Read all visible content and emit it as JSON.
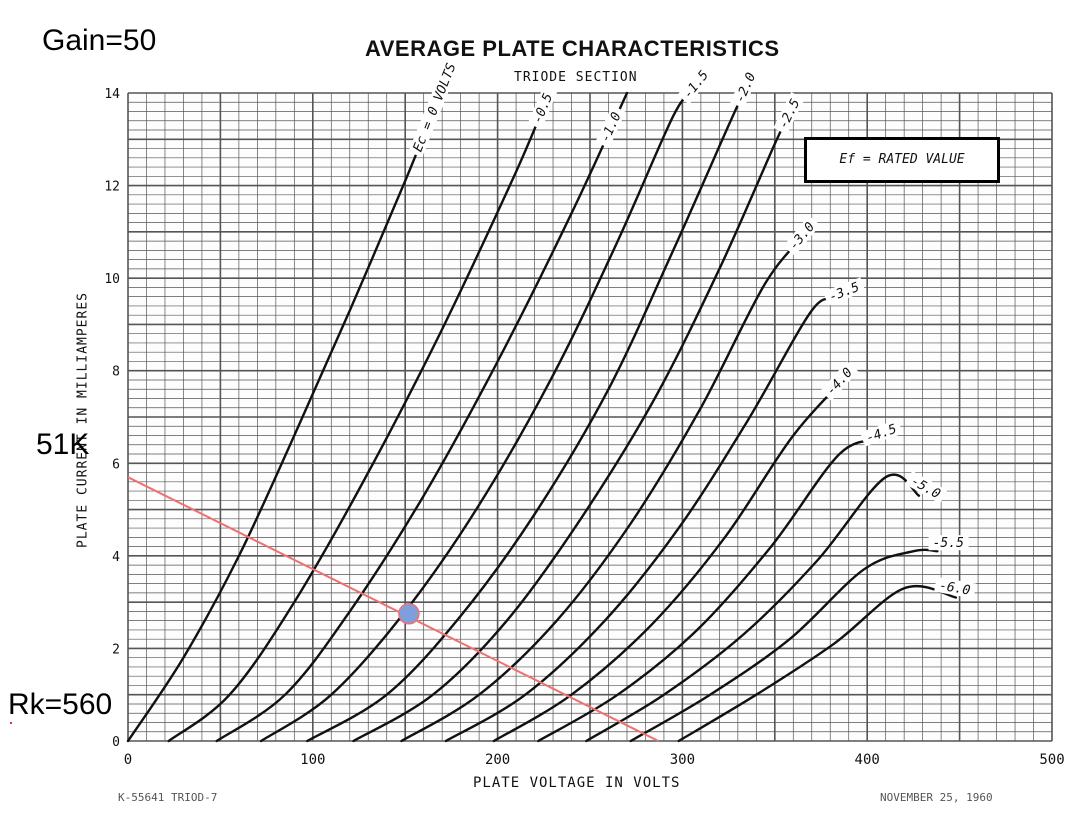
{
  "annotations": {
    "gain": "Gain=50",
    "load_resistor": "51K",
    "cathode_resistor": "Rk=560"
  },
  "chart_data": {
    "type": "line",
    "title": "AVERAGE PLATE CHARACTERISTICS",
    "subtitle": "TRIODE SECTION",
    "xlabel": "PLATE VOLTAGE IN VOLTS",
    "ylabel": "PLATE CURRENT IN MILLIAMPERES",
    "xlim": [
      0,
      500
    ],
    "ylim": [
      0,
      14
    ],
    "x_ticks": [
      "0",
      "100",
      "200",
      "300",
      "400",
      "500"
    ],
    "y_ticks": [
      "0",
      "2",
      "4",
      "6",
      "8",
      "10",
      "12",
      "14"
    ],
    "grid": true,
    "legend_box": "Ef = RATED VALUE",
    "series": [
      {
        "name": "Ec = 0 VOLTS",
        "label": "Ec = 0 VOLTS",
        "points": [
          [
            0,
            0
          ],
          [
            30,
            1.8
          ],
          [
            60,
            4.0
          ],
          [
            90,
            6.6
          ],
          [
            120,
            9.3
          ],
          [
            150,
            12.1
          ],
          [
            165,
            13.6
          ]
        ]
      },
      {
        "name": "-0.5",
        "label": "-0.5",
        "points": [
          [
            22,
            0
          ],
          [
            55,
            1.0
          ],
          [
            90,
            3.0
          ],
          [
            130,
            5.8
          ],
          [
            170,
            8.9
          ],
          [
            210,
            12.3
          ],
          [
            228,
            14.0
          ]
        ]
      },
      {
        "name": "-1.0",
        "label": "-1.0",
        "points": [
          [
            48,
            0
          ],
          [
            85,
            1.0
          ],
          [
            120,
            2.8
          ],
          [
            160,
            5.3
          ],
          [
            200,
            8.2
          ],
          [
            240,
            11.4
          ],
          [
            270,
            14.0
          ]
        ]
      },
      {
        "name": "-1.5",
        "label": "-1.5",
        "points": [
          [
            72,
            0
          ],
          [
            110,
            1.0
          ],
          [
            150,
            2.8
          ],
          [
            190,
            5.1
          ],
          [
            230,
            7.9
          ],
          [
            265,
            10.8
          ],
          [
            295,
            13.5
          ],
          [
            305,
            14.0
          ]
        ]
      },
      {
        "name": "-2.0",
        "label": "-2.0",
        "points": [
          [
            97,
            0
          ],
          [
            140,
            1.0
          ],
          [
            180,
            2.7
          ],
          [
            220,
            4.9
          ],
          [
            260,
            7.6
          ],
          [
            295,
            10.6
          ],
          [
            325,
            13.3
          ],
          [
            333,
            14.0
          ]
        ]
      },
      {
        "name": "-2.5",
        "label": "-2.5",
        "points": [
          [
            122,
            0
          ],
          [
            165,
            1.0
          ],
          [
            205,
            2.6
          ],
          [
            245,
            4.8
          ],
          [
            285,
            7.4
          ],
          [
            320,
            10.2
          ],
          [
            350,
            12.9
          ],
          [
            355,
            13.3
          ]
        ]
      },
      {
        "name": "-3.0",
        "label": "-3.0",
        "points": [
          [
            148,
            0
          ],
          [
            190,
            1.0
          ],
          [
            232,
            2.6
          ],
          [
            272,
            4.7
          ],
          [
            310,
            7.2
          ],
          [
            345,
            9.9
          ],
          [
            368,
            11.0
          ]
        ]
      },
      {
        "name": "-3.5",
        "label": "-3.5",
        "points": [
          [
            172,
            0
          ],
          [
            215,
            1.0
          ],
          [
            258,
            2.6
          ],
          [
            298,
            4.6
          ],
          [
            335,
            6.9
          ],
          [
            370,
            9.3
          ],
          [
            383,
            9.5
          ]
        ]
      },
      {
        "name": "-4.0",
        "label": "-4.0",
        "points": [
          [
            198,
            0
          ],
          [
            240,
            1.0
          ],
          [
            283,
            2.5
          ],
          [
            323,
            4.4
          ],
          [
            360,
            6.6
          ],
          [
            392,
            8.0
          ]
        ]
      },
      {
        "name": "-4.5",
        "label": "-4.5",
        "points": [
          [
            222,
            0
          ],
          [
            265,
            1.0
          ],
          [
            308,
            2.4
          ],
          [
            348,
            4.2
          ],
          [
            385,
            6.2
          ],
          [
            407,
            6.5
          ]
        ]
      },
      {
        "name": "-5.0",
        "label": "-5.0",
        "points": [
          [
            248,
            0
          ],
          [
            290,
            1.0
          ],
          [
            333,
            2.3
          ],
          [
            373,
            3.9
          ],
          [
            410,
            5.7
          ],
          [
            428,
            5.3
          ]
        ]
      },
      {
        "name": "-5.5",
        "label": "-5.5",
        "points": [
          [
            272,
            0
          ],
          [
            315,
            1.0
          ],
          [
            358,
            2.2
          ],
          [
            398,
            3.7
          ],
          [
            425,
            4.1
          ],
          [
            438,
            4.1
          ]
        ]
      },
      {
        "name": "-6.0",
        "label": "-6.0",
        "points": [
          [
            298,
            0
          ],
          [
            340,
            1.0
          ],
          [
            382,
            2.1
          ],
          [
            420,
            3.3
          ],
          [
            448,
            3.1
          ]
        ]
      }
    ],
    "load_line": {
      "color": "#f07070",
      "points": [
        [
          0,
          5.7
        ],
        [
          287,
          0
        ]
      ]
    },
    "operating_point": {
      "x": 152,
      "y": 2.75,
      "color": "#7f9fdc"
    }
  },
  "footer": {
    "left": "K-55641 TRIOD-7",
    "right": "NOVEMBER 25, 1960"
  },
  "colors": {
    "grid": "#555555",
    "curve": "#111111"
  }
}
